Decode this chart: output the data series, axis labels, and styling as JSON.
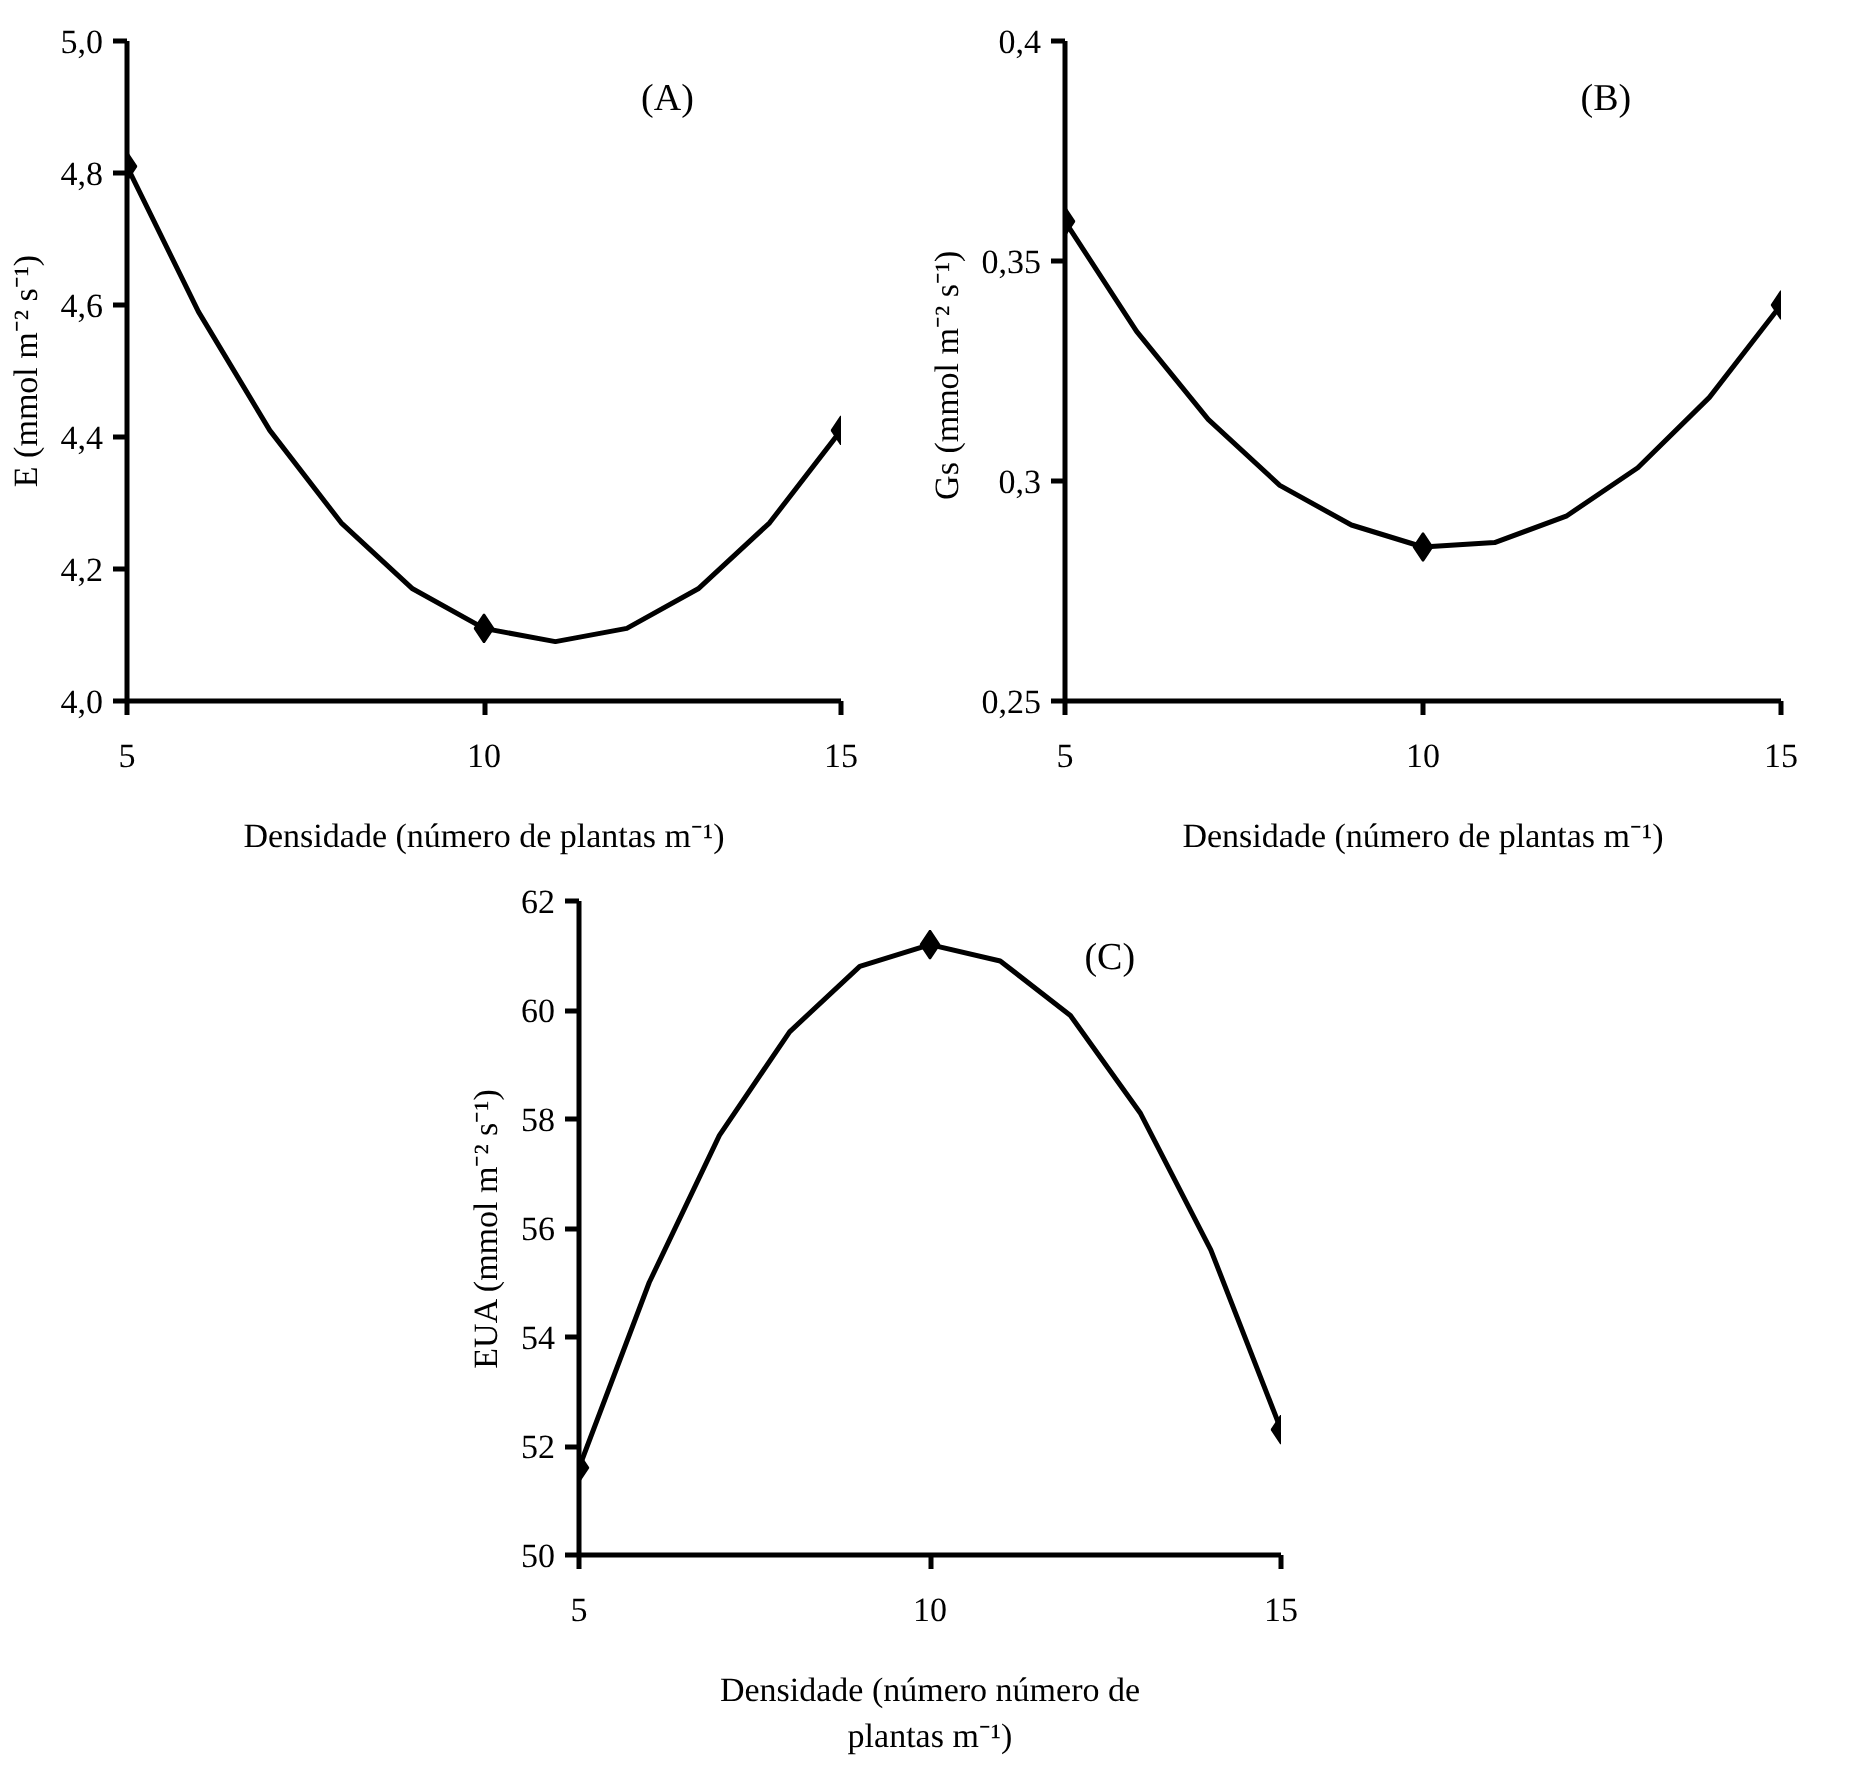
{
  "chart_data": [
    {
      "type": "scatter",
      "xlabel": "Densidade (número de plantas m⁻¹)",
      "ylabel": "E (mmol m⁻² s⁻¹)",
      "annotations": [
        "(A)"
      ],
      "xlim": [
        5,
        15
      ],
      "xticks": [
        5,
        10,
        15
      ],
      "ylim": [
        4.0,
        5.0
      ],
      "yticks": [
        {
          "value": 4.0,
          "label": "4,0"
        },
        {
          "value": 4.2,
          "label": "4,2"
        },
        {
          "value": 4.4,
          "label": "4,4"
        },
        {
          "value": 4.6,
          "label": "4,6"
        },
        {
          "value": 4.8,
          "label": "4,8"
        },
        {
          "value": 5.0,
          "label": "5,0"
        }
      ],
      "grid": false,
      "series": [
        {
          "type": "line",
          "color": "#000000",
          "marker": "none",
          "line_style": "solid",
          "x": [
            5,
            6,
            7,
            8,
            9,
            10,
            11,
            12,
            13,
            14,
            15
          ],
          "values": [
            4.81,
            4.59,
            4.41,
            4.27,
            4.17,
            4.11,
            4.09,
            4.11,
            4.17,
            4.27,
            4.41
          ]
        },
        {
          "type": "scatter",
          "color": "#000000",
          "marker": "diamond",
          "x": [
            5,
            10,
            15
          ],
          "values": [
            4.81,
            4.11,
            4.41
          ]
        }
      ]
    },
    {
      "type": "scatter",
      "xlabel": "Densidade (número de plantas m⁻¹)",
      "ylabel": "Gs  (mmol m⁻² s⁻¹)",
      "annotations": [
        "(B)"
      ],
      "xlim": [
        5,
        15
      ],
      "xticks": [
        5,
        10,
        15
      ],
      "ylim": [
        0.25,
        0.4
      ],
      "yticks": [
        {
          "value": 0.25,
          "label": "0,25"
        },
        {
          "value": 0.3,
          "label": "0,3"
        },
        {
          "value": 0.35,
          "label": "0,35"
        },
        {
          "value": 0.4,
          "label": "0,4"
        }
      ],
      "grid": false,
      "series": [
        {
          "type": "line",
          "color": "#000000",
          "marker": "none",
          "line_style": "solid",
          "x": [
            5,
            6,
            7,
            8,
            9,
            10,
            11,
            12,
            13,
            14,
            15
          ],
          "values": [
            0.359,
            0.334,
            0.314,
            0.299,
            0.29,
            0.285,
            0.286,
            0.292,
            0.303,
            0.319,
            0.34
          ]
        },
        {
          "type": "scatter",
          "color": "#000000",
          "marker": "diamond",
          "x": [
            5,
            10,
            15
          ],
          "values": [
            0.359,
            0.285,
            0.34
          ]
        }
      ]
    },
    {
      "type": "scatter",
      "xlabel": "Densidade (número número de plantas m⁻¹)",
      "ylabel": "EUA (mmol m⁻² s⁻¹)",
      "annotations": [
        "(C)"
      ],
      "xlim": [
        5,
        15
      ],
      "xticks": [
        5,
        10,
        15
      ],
      "ylim": [
        50,
        62
      ],
      "yticks": [
        50,
        52,
        54,
        56,
        58,
        60,
        62
      ],
      "grid": false,
      "series": [
        {
          "type": "line",
          "color": "#000000",
          "marker": "none",
          "line_style": "solid",
          "x": [
            5,
            6,
            7,
            8,
            9,
            10,
            11,
            12,
            13,
            14,
            15
          ],
          "values": [
            51.6,
            55.0,
            57.7,
            59.6,
            60.8,
            61.2,
            60.9,
            59.9,
            58.1,
            55.6,
            52.3
          ]
        },
        {
          "type": "scatter",
          "color": "#000000",
          "marker": "diamond",
          "x": [
            5,
            10,
            15
          ],
          "values": [
            51.6,
            61.2,
            52.3
          ]
        }
      ]
    }
  ]
}
